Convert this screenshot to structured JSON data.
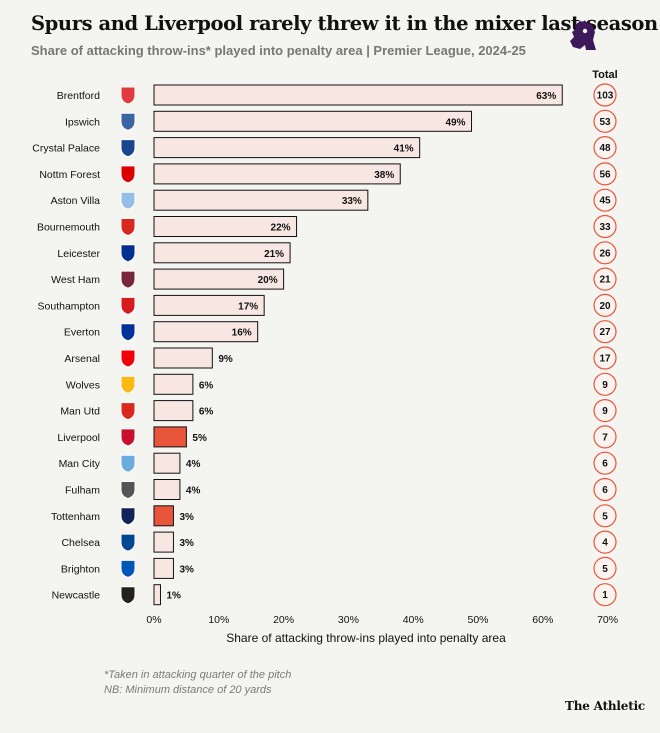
{
  "header": {
    "title": "Spurs and Liverpool rarely threw it in the mixer last season",
    "subtitle": "Share of attacking throw-ins* played into penalty area | Premier League, 2024-25"
  },
  "footnotes": {
    "line1": "*Taken in attacking quarter of the pitch",
    "line2": "NB: Minimum distance of 20 yards"
  },
  "brand": "The Athletic",
  "colors": {
    "bar_fill": "#f7e6e1",
    "highlight_fill": "#e8553a",
    "ring": "#e8553a",
    "pl_purple": "#3d195b"
  },
  "chart_data": {
    "type": "bar",
    "orientation": "horizontal",
    "title": "Spurs and Liverpool rarely threw it in the mixer last season",
    "xlabel": "Share of attacking throw-ins played into penalty area",
    "xlim": [
      0,
      70
    ],
    "xticks": [
      "0%",
      "10%",
      "20%",
      "30%",
      "40%",
      "50%",
      "60%",
      "70%"
    ],
    "total_header": "Total",
    "value_suffix": "%",
    "highlighted": [
      "Liverpool",
      "Tottenham"
    ],
    "categories": [
      "Brentford",
      "Ipswich",
      "Crystal Palace",
      "Nottm Forest",
      "Aston Villa",
      "Bournemouth",
      "Leicester",
      "West Ham",
      "Southampton",
      "Everton",
      "Arsenal",
      "Wolves",
      "Man Utd",
      "Liverpool",
      "Man City",
      "Fulham",
      "Tottenham",
      "Chelsea",
      "Brighton",
      "Newcastle"
    ],
    "values": [
      63,
      49,
      41,
      38,
      33,
      22,
      21,
      20,
      17,
      16,
      9,
      6,
      6,
      5,
      4,
      4,
      3,
      3,
      3,
      1
    ],
    "totals": [
      103,
      53,
      48,
      56,
      45,
      33,
      26,
      21,
      20,
      27,
      17,
      9,
      9,
      7,
      6,
      6,
      5,
      4,
      5,
      1
    ],
    "crest_colors": [
      "#e03a3e",
      "#3a64a3",
      "#1b458f",
      "#dd0000",
      "#95bfe5",
      "#da291c",
      "#003090",
      "#7a263a",
      "#d71920",
      "#003399",
      "#ef0107",
      "#fdb913",
      "#da291c",
      "#c8102e",
      "#6cabdd",
      "#555555",
      "#132257",
      "#034694",
      "#0057b8",
      "#241f20"
    ]
  }
}
